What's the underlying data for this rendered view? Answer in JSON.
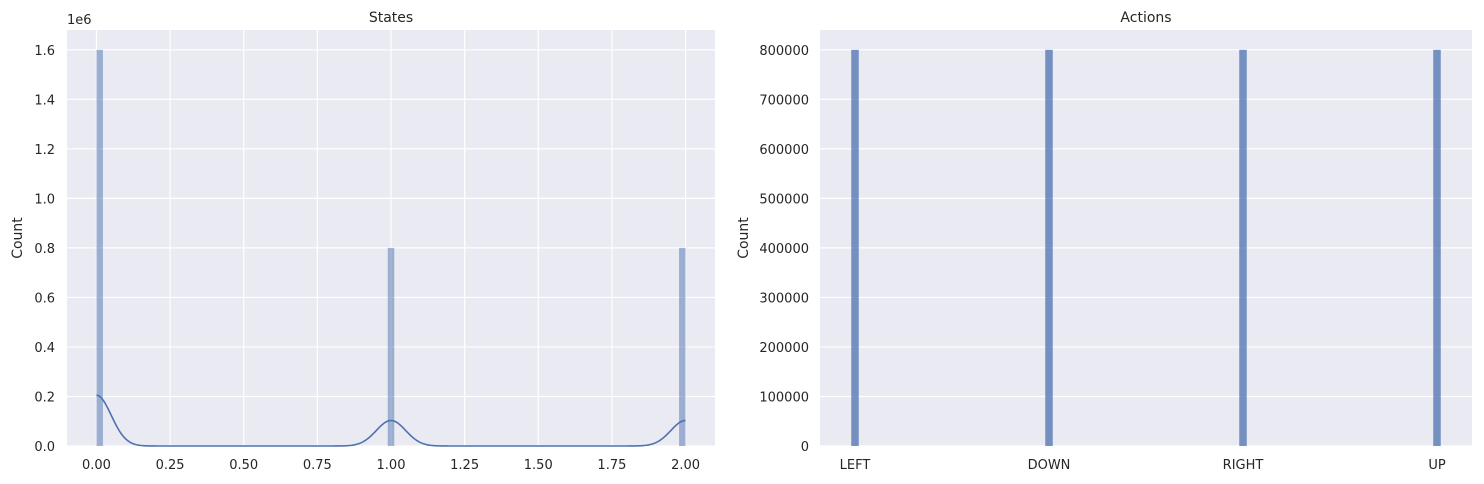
{
  "chart_data": [
    {
      "type": "histogram",
      "title": "States",
      "xlabel": "",
      "ylabel": "Count",
      "y_offset_label": "1e6",
      "xlim": [
        -0.1,
        2.1
      ],
      "ylim": [
        0,
        1.68
      ],
      "xticks": [
        0.0,
        0.25,
        0.5,
        0.75,
        1.0,
        1.25,
        1.5,
        1.75,
        2.0
      ],
      "xtick_labels": [
        "0.00",
        "0.25",
        "0.50",
        "0.75",
        "1.00",
        "1.25",
        "1.50",
        "1.75",
        "2.00"
      ],
      "yticks": [
        0.0,
        0.2,
        0.4,
        0.6,
        0.8,
        1.0,
        1.2,
        1.4,
        1.6
      ],
      "ytick_labels": [
        "0.0",
        "0.2",
        "0.4",
        "0.6",
        "0.8",
        "1.0",
        "1.2",
        "1.4",
        "1.6"
      ],
      "bins": [
        {
          "x": 0.0,
          "count": 1.6
        },
        {
          "x": 1.0,
          "count": 0.8
        },
        {
          "x": 2.0,
          "count": 0.8
        }
      ],
      "kde": {
        "centers": [
          0.0,
          1.0,
          2.0
        ],
        "peaks": [
          0.205,
          0.103,
          0.103
        ],
        "bandwidth": 0.05
      },
      "grid": true,
      "bar_color": "#4c72b0",
      "bar_alpha": 0.5
    },
    {
      "type": "bar",
      "title": "Actions",
      "xlabel": "",
      "ylabel": "Count",
      "categories": [
        "LEFT",
        "DOWN",
        "RIGHT",
        "UP"
      ],
      "values": [
        800000,
        800000,
        800000,
        800000
      ],
      "ylim": [
        0,
        840000
      ],
      "yticks": [
        0,
        100000,
        200000,
        300000,
        400000,
        500000,
        600000,
        700000,
        800000
      ],
      "ytick_labels": [
        "0",
        "100000",
        "200000",
        "300000",
        "400000",
        "500000",
        "600000",
        "700000",
        "800000"
      ],
      "grid": true,
      "bar_color": "#4c72b0",
      "bar_alpha": 0.75
    }
  ],
  "colors": {
    "axes_background": "#eaeaf2",
    "grid": "#ffffff",
    "series": "#4c72b0"
  }
}
